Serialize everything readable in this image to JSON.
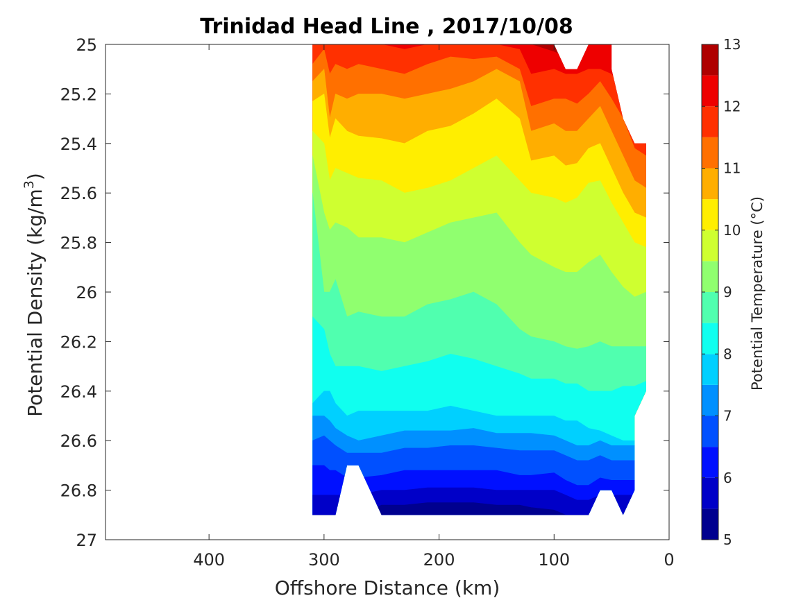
{
  "chart_data": {
    "type": "contourf",
    "title": "Trinidad Head Line , 2017/10/08",
    "xlabel": "Offshore Distance (km)",
    "ylabel": "Potential Density (kg/m3)",
    "ylabel_main": "Potential Density (kg/m",
    "ylabel_sup": "3",
    "ylabel_end": ")",
    "x_reversed": true,
    "xlim": [
      490,
      0
    ],
    "xticks": [
      400,
      300,
      200,
      100,
      0
    ],
    "xtick_labels": [
      "400",
      "300",
      "200",
      "100",
      "0"
    ],
    "ylim": [
      25,
      27
    ],
    "y_reversed": true,
    "yticks": [
      25,
      25.2,
      25.4,
      25.6,
      25.8,
      26,
      26.2,
      26.4,
      26.6,
      26.8,
      27
    ],
    "ytick_labels": [
      "25",
      "25.2",
      "25.4",
      "25.6",
      "25.8",
      "26",
      "26.2",
      "26.4",
      "26.6",
      "26.8",
      "27"
    ],
    "colorbar": {
      "label": "Potential Temperature (°C)",
      "range": [
        5,
        13
      ],
      "ticks": [
        5,
        6,
        7,
        8,
        9,
        10,
        11,
        12,
        13
      ],
      "tick_labels": [
        "5",
        "6",
        "7",
        "8",
        "9",
        "10",
        "11",
        "12",
        "13"
      ],
      "levels": [
        5,
        5.5,
        6,
        6.5,
        7,
        7.5,
        8,
        8.5,
        9,
        9.5,
        10,
        10.5,
        11,
        11.5,
        12,
        12.5,
        13
      ],
      "colors": [
        "#00008f",
        "#0000c8",
        "#0010ff",
        "#0050ff",
        "#0090ff",
        "#00d0ff",
        "#10ffef",
        "#50ffaf",
        "#90ff6f",
        "#cfff30",
        "#ffee00",
        "#ffae00",
        "#ff7000",
        "#ff3000",
        "#ee0000",
        "#af0000"
      ]
    },
    "x_stations": [
      310,
      300,
      295,
      290,
      280,
      270,
      250,
      230,
      210,
      190,
      170,
      150,
      130,
      120,
      100,
      90,
      80,
      70,
      60,
      50,
      40,
      30,
      20
    ],
    "isopycnal_of_isotherm": [
      {
        "temp": 12.5,
        "y": [
          25.0,
          25.0,
          25.0,
          25.0,
          25.0,
          25.0,
          25.0,
          25.0,
          25.0,
          25.0,
          25.0,
          25.0,
          25.0,
          25.0,
          25.03,
          25.05,
          25.04,
          25.0,
          25.0,
          25.0,
          25.0,
          25.0,
          25.0
        ]
      },
      {
        "temp": 12.0,
        "y": [
          25.0,
          25.0,
          25.0,
          25.0,
          25.0,
          25.0,
          25.0,
          25.02,
          25.0,
          25.0,
          25.0,
          25.0,
          25.02,
          25.12,
          25.1,
          25.12,
          25.12,
          25.1,
          25.1,
          25.12,
          25.2,
          25.3,
          25.32
        ]
      },
      {
        "temp": 11.5,
        "y": [
          25.08,
          25.02,
          25.12,
          25.08,
          25.1,
          25.08,
          25.1,
          25.12,
          25.08,
          25.05,
          25.06,
          25.05,
          25.1,
          25.25,
          25.22,
          25.22,
          25.24,
          25.2,
          25.15,
          25.22,
          25.3,
          25.42,
          25.45
        ]
      },
      {
        "temp": 11.0,
        "y": [
          25.15,
          25.1,
          25.3,
          25.2,
          25.22,
          25.2,
          25.2,
          25.22,
          25.2,
          25.18,
          25.15,
          25.1,
          25.15,
          25.35,
          25.32,
          25.35,
          25.35,
          25.3,
          25.25,
          25.35,
          25.45,
          25.55,
          25.58
        ]
      },
      {
        "temp": 10.5,
        "y": [
          25.23,
          25.2,
          25.38,
          25.3,
          25.35,
          25.37,
          25.38,
          25.4,
          25.35,
          25.33,
          25.28,
          25.22,
          25.3,
          25.47,
          25.45,
          25.49,
          25.48,
          25.42,
          25.4,
          25.5,
          25.6,
          25.68,
          25.7
        ]
      },
      {
        "temp": 10.0,
        "y": [
          25.35,
          25.4,
          25.55,
          25.5,
          25.52,
          25.54,
          25.55,
          25.6,
          25.58,
          25.55,
          25.5,
          25.45,
          25.55,
          25.6,
          25.62,
          25.64,
          25.62,
          25.56,
          25.55,
          25.64,
          25.72,
          25.8,
          25.82
        ]
      },
      {
        "temp": 9.5,
        "y": [
          25.45,
          25.68,
          25.75,
          25.72,
          25.74,
          25.78,
          25.78,
          25.8,
          25.76,
          25.72,
          25.7,
          25.68,
          25.8,
          25.85,
          25.9,
          25.92,
          25.92,
          25.88,
          25.85,
          25.92,
          25.98,
          26.02,
          26.0
        ]
      },
      {
        "temp": 9.0,
        "y": [
          25.6,
          26.0,
          26.0,
          25.95,
          26.1,
          26.08,
          26.1,
          26.1,
          26.05,
          26.03,
          26.0,
          26.05,
          26.15,
          26.18,
          26.2,
          26.22,
          26.23,
          26.22,
          26.2,
          26.22,
          26.22,
          26.22,
          26.22
        ]
      },
      {
        "temp": 8.5,
        "y": [
          26.1,
          26.15,
          26.25,
          26.3,
          26.3,
          26.3,
          26.32,
          26.3,
          26.28,
          26.25,
          26.27,
          26.3,
          26.33,
          26.35,
          26.35,
          26.37,
          26.37,
          26.4,
          26.4,
          26.4,
          26.38,
          26.38,
          26.36
        ]
      },
      {
        "temp": 8.0,
        "y": [
          26.45,
          26.4,
          26.4,
          26.45,
          26.5,
          26.48,
          26.48,
          26.48,
          26.48,
          26.46,
          26.48,
          26.5,
          26.5,
          26.5,
          26.5,
          26.52,
          26.52,
          26.55,
          26.56,
          26.58,
          26.6,
          26.6,
          26.6
        ]
      },
      {
        "temp": 7.5,
        "y": [
          26.5,
          26.5,
          26.52,
          26.55,
          26.58,
          26.6,
          26.58,
          26.56,
          26.56,
          26.56,
          26.55,
          26.57,
          26.57,
          26.57,
          26.58,
          26.6,
          26.62,
          26.62,
          26.6,
          26.62,
          26.62,
          26.62,
          26.62
        ]
      },
      {
        "temp": 7.0,
        "y": [
          26.6,
          26.58,
          26.6,
          26.62,
          26.65,
          26.65,
          26.65,
          26.63,
          26.63,
          26.62,
          26.62,
          26.63,
          26.64,
          26.64,
          26.64,
          26.66,
          26.68,
          26.68,
          26.66,
          26.68,
          26.68,
          26.68,
          26.68
        ]
      },
      {
        "temp": 6.5,
        "y": [
          26.7,
          26.7,
          26.72,
          26.72,
          26.75,
          26.75,
          26.74,
          26.72,
          26.72,
          26.72,
          26.72,
          26.72,
          26.74,
          26.74,
          26.73,
          26.76,
          26.78,
          26.78,
          26.75,
          26.76,
          26.76,
          26.76,
          26.76
        ]
      },
      {
        "temp": 6.0,
        "y": [
          26.82,
          26.82,
          26.82,
          26.82,
          26.82,
          26.82,
          26.8,
          26.8,
          26.79,
          26.79,
          26.79,
          26.8,
          26.8,
          26.8,
          26.8,
          26.82,
          26.84,
          26.84,
          26.82,
          26.82,
          26.82,
          26.82,
          26.82
        ]
      },
      {
        "temp": 5.5,
        "y": [
          26.9,
          26.9,
          26.9,
          26.9,
          26.9,
          26.9,
          26.86,
          26.86,
          26.85,
          26.85,
          26.85,
          26.86,
          26.86,
          26.87,
          26.88,
          26.9,
          26.9,
          26.9,
          26.9,
          26.9,
          26.9,
          26.9,
          26.9
        ]
      }
    ],
    "data_top_boundary": {
      "x": [
        310,
        300,
        295,
        290,
        280,
        270,
        250,
        230,
        210,
        190,
        170,
        150,
        130,
        120,
        100,
        90,
        80,
        70,
        60,
        50,
        50,
        40,
        30,
        20,
        20
      ],
      "y": [
        25.0,
        25.0,
        25.0,
        25.0,
        25.0,
        25.0,
        25.0,
        25.0,
        25.0,
        25.0,
        25.0,
        25.0,
        25.0,
        25.0,
        25.0,
        25.1,
        25.1,
        25.0,
        25.0,
        25.0,
        25.1,
        25.3,
        25.4,
        25.4,
        26.4
      ]
    },
    "data_bottom_boundary": {
      "x": [
        20,
        30,
        30,
        40,
        50,
        60,
        70,
        100,
        150,
        200,
        250,
        270,
        280,
        290,
        300,
        310
      ],
      "y": [
        26.4,
        26.5,
        26.8,
        26.9,
        26.8,
        26.8,
        26.9,
        26.9,
        26.9,
        26.9,
        26.9,
        26.7,
        26.7,
        26.9,
        26.9,
        26.9
      ]
    }
  }
}
